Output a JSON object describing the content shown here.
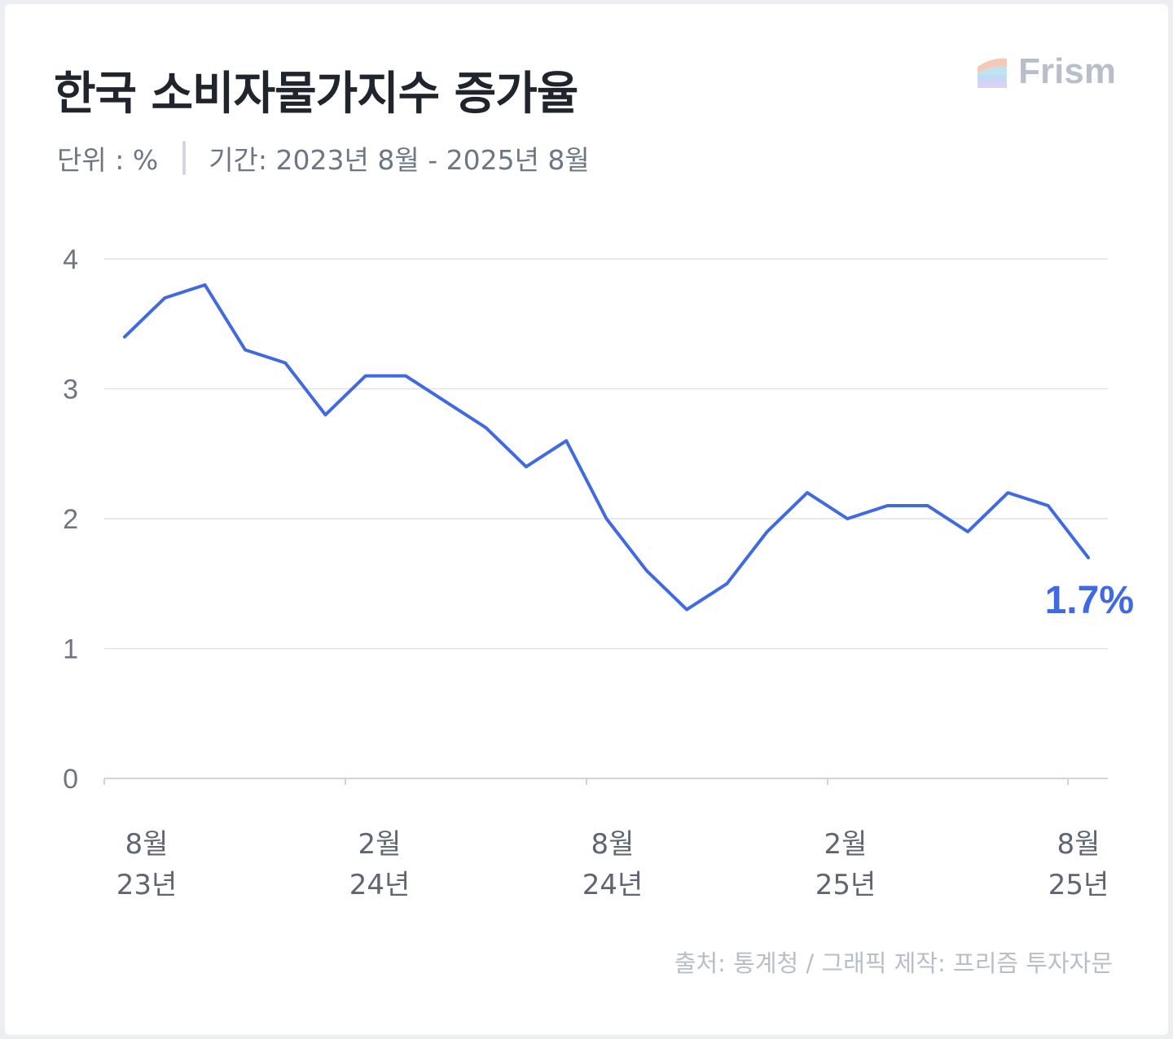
{
  "header": {
    "title": "한국 소비자물가지수 증가율",
    "unit_label": "단위 : %",
    "period_label": "기간: 2023년 8월 - 2025년 8월"
  },
  "logo": {
    "text": "Frism",
    "icon": "frism-logo-icon"
  },
  "footer": {
    "source": "출처: 통계청 / 그래픽 제작: 프리즘 투자자문"
  },
  "colors": {
    "line": "#4169e1",
    "grid": "#dfe2e7",
    "axis": "#cfd3da",
    "text_muted": "#6e7583"
  },
  "chart_data": {
    "type": "line",
    "title": "한국 소비자물가지수 증가율",
    "x": [
      "2023-08",
      "2023-09",
      "2023-10",
      "2023-11",
      "2023-12",
      "2024-01",
      "2024-02",
      "2024-03",
      "2024-04",
      "2024-05",
      "2024-06",
      "2024-07",
      "2024-08",
      "2024-09",
      "2024-10",
      "2024-11",
      "2024-12",
      "2025-01",
      "2025-02",
      "2025-03",
      "2025-04",
      "2025-05",
      "2025-06",
      "2025-07",
      "2025-08"
    ],
    "series": [
      {
        "values": [
          3.4,
          3.7,
          3.8,
          3.3,
          3.2,
          2.8,
          3.1,
          3.1,
          2.9,
          2.7,
          2.4,
          2.6,
          2.0,
          1.6,
          1.3,
          1.5,
          1.9,
          2.2,
          2.0,
          2.1,
          2.1,
          1.9,
          2.2,
          2.1,
          1.7
        ]
      }
    ],
    "ylim": [
      0,
      4
    ],
    "yticks": [
      "0",
      "1",
      "2",
      "3",
      "4"
    ],
    "xticks": [
      {
        "month": "8월",
        "year": "23년",
        "index": 0
      },
      {
        "month": "2월",
        "year": "24년",
        "index": 6
      },
      {
        "month": "8월",
        "year": "24년",
        "index": 12
      },
      {
        "month": "2월",
        "year": "25년",
        "index": 18
      },
      {
        "month": "8월",
        "year": "25년",
        "index": 24
      }
    ],
    "end_label": "1.7%",
    "grid": true,
    "legend": "none"
  }
}
